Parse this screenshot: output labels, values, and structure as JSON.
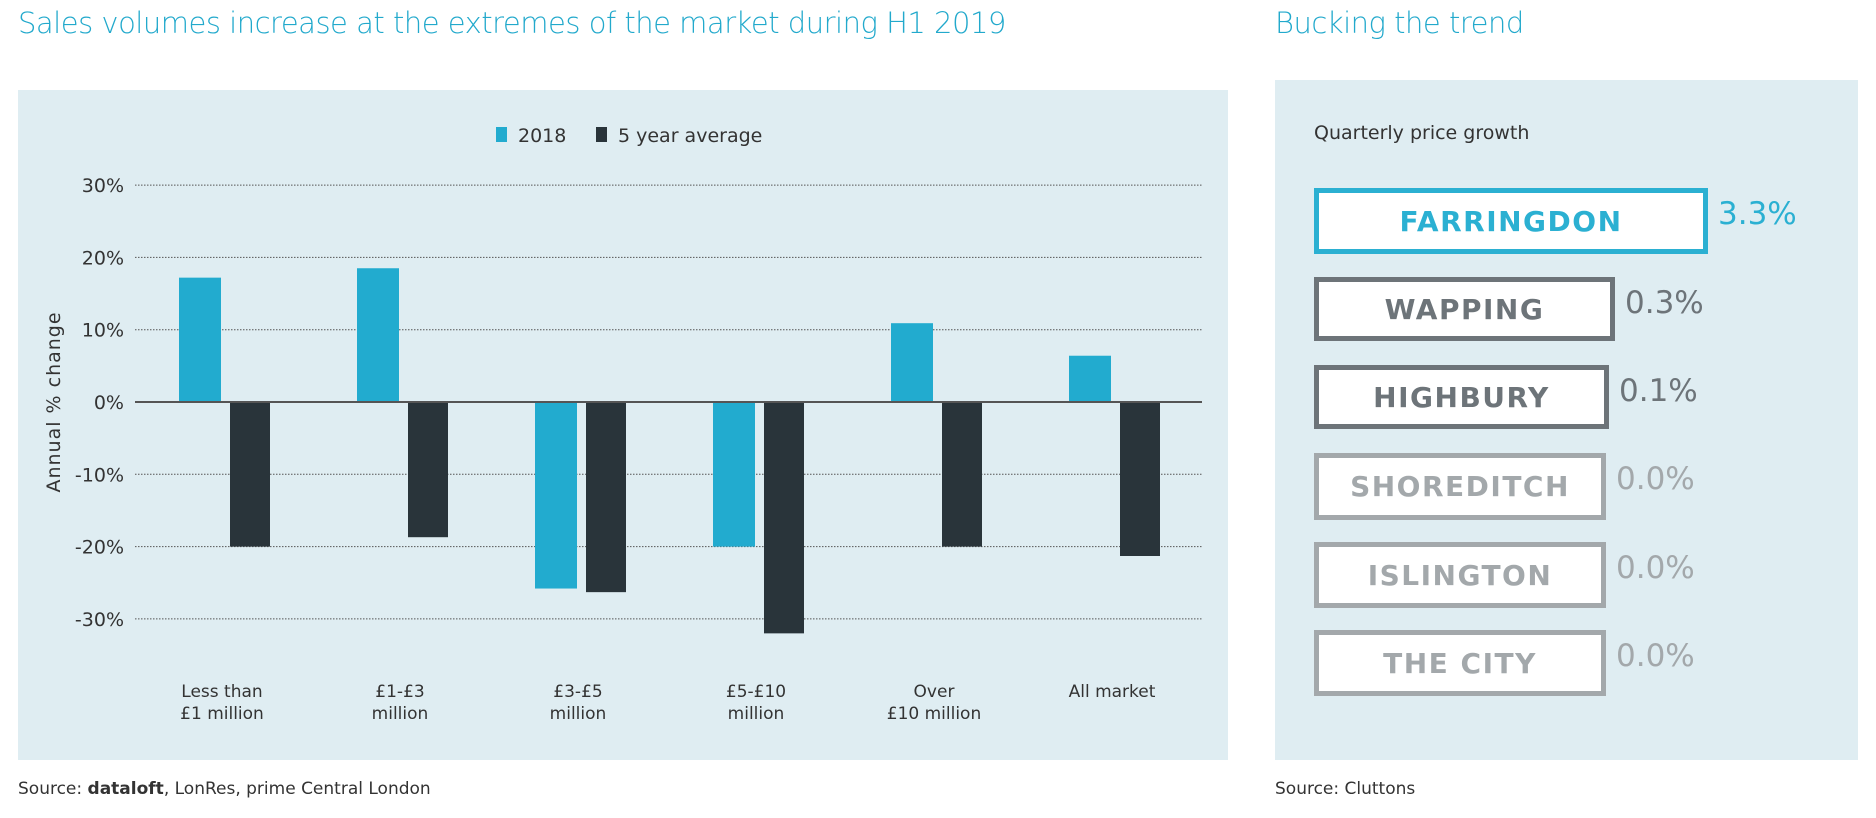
{
  "left": {
    "title": "Sales volumes increase at the extremes of the market during H1 2019",
    "source_prefix": "Source: ",
    "source_brand": "dataloft",
    "source_rest": ", LonRes, prime Central London"
  },
  "right": {
    "title": "Bucking the trend",
    "subtitle": "Quarterly price growth",
    "source": "Source: Cluttons",
    "items": [
      {
        "name": "FARRINGDON",
        "value": "3.3%",
        "color": "#2bb0d2"
      },
      {
        "name": "WAPPING",
        "value": "0.3%",
        "color": "#6d7479"
      },
      {
        "name": "HIGHBURY",
        "value": "0.1%",
        "color": "#6d7479"
      },
      {
        "name": "SHOREDITCH",
        "value": "0.0%",
        "color": "#a3a8ab"
      },
      {
        "name": "ISLINGTON",
        "value": "0.0%",
        "color": "#a3a8ab"
      },
      {
        "name": "THE CITY",
        "value": "0.0%",
        "color": "#a3a8ab"
      }
    ]
  },
  "chart_data": {
    "type": "bar",
    "title": "Sales volumes increase at the extremes of the market during H1 2019",
    "ylabel": "Annual % change",
    "xlabel": "",
    "ylim": [
      -30,
      30
    ],
    "yticks": [
      "30%",
      "20%",
      "10%",
      "0%",
      "-10%",
      "-20%",
      "-30%"
    ],
    "ytick_values": [
      30,
      20,
      10,
      0,
      -10,
      -20,
      -30
    ],
    "grid": true,
    "legend": "top-center",
    "categories": [
      [
        "Less than",
        "£1 million"
      ],
      [
        "£1-£3",
        "million"
      ],
      [
        "£3-£5",
        "million"
      ],
      [
        "£5-£10",
        "million"
      ],
      [
        "Over",
        "£10 million"
      ],
      [
        "All market"
      ]
    ],
    "series": [
      {
        "name": "2018",
        "color": "#22abcf",
        "values": [
          17.2,
          18.5,
          -25.8,
          -20.0,
          10.9,
          6.4
        ]
      },
      {
        "name": "5 year average",
        "color": "#29343a",
        "values": [
          -20.0,
          -18.7,
          -26.3,
          -32.0,
          -20.0,
          -21.3
        ]
      }
    ]
  }
}
